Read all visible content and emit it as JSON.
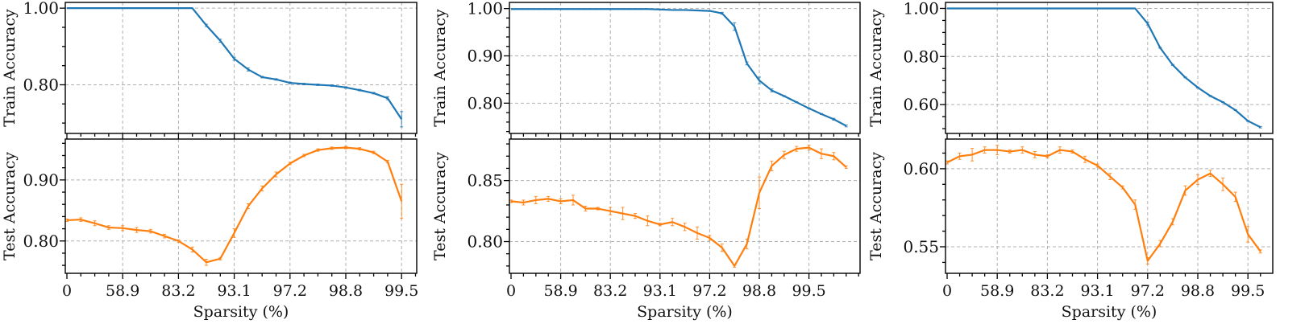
{
  "figure": {
    "train_color": "#1f77b4",
    "test_color": "#ff7f0e",
    "grid_color": "#b0b0b0"
  },
  "chart_data": [
    {
      "type": "line",
      "panel": "left",
      "title": "",
      "xlabel": "Sparsity (%)",
      "x_tick_labels": [
        "0",
        "58.9",
        "83.2",
        "93.1",
        "97.2",
        "98.8",
        "99.5"
      ],
      "x_tick_step_index": 4,
      "n_points": 25,
      "top": {
        "ylabel": "Train Accuracy",
        "ylim": [
          0.673,
          1.015
        ],
        "yticks": [
          1.0,
          0.8
        ],
        "ytick_labels": [
          "1.00",
          "0.80"
        ],
        "minor_step": 0.05,
        "series": [
          {
            "name": "Train Accuracy",
            "color": "#1f77b4",
            "values": [
              1.0,
              1.0,
              1.0,
              1.0,
              1.0,
              1.0,
              1.0,
              1.0,
              1.0,
              1.0,
              0.955,
              0.915,
              0.868,
              0.84,
              0.82,
              0.814,
              0.805,
              0.802,
              0.8,
              0.798,
              0.793,
              0.786,
              0.778,
              0.765,
              0.71
            ],
            "errors": [
              0,
              0,
              0,
              0,
              0,
              0,
              0,
              0,
              0,
              0,
              0.003,
              0.004,
              0.004,
              0.004,
              0.002,
              0.002,
              0.002,
              0.002,
              0.002,
              0.002,
              0.002,
              0.002,
              0.002,
              0.004,
              0.02
            ]
          }
        ]
      },
      "bottom": {
        "ylabel": "Test Accuracy",
        "ylim": [
          0.747,
          0.967
        ],
        "yticks": [
          0.9,
          0.8
        ],
        "ytick_labels": [
          "0.90",
          "0.80"
        ],
        "minor_step": 0.02,
        "series": [
          {
            "name": "Test Accuracy",
            "color": "#ff7f0e",
            "values": [
              0.834,
              0.835,
              0.829,
              0.822,
              0.821,
              0.818,
              0.816,
              0.808,
              0.8,
              0.786,
              0.765,
              0.771,
              0.813,
              0.857,
              0.886,
              0.909,
              0.927,
              0.94,
              0.949,
              0.952,
              0.953,
              0.951,
              0.945,
              0.93,
              0.865
            ],
            "errors": [
              0.002,
              0.003,
              0.004,
              0.003,
              0.004,
              0.004,
              0.003,
              0.003,
              0.002,
              0.004,
              0.005,
              0.002,
              0.007,
              0.004,
              0.004,
              0.004,
              0.002,
              0.002,
              0.002,
              0.002,
              0.002,
              0.002,
              0.002,
              0.002,
              0.028
            ]
          }
        ]
      }
    },
    {
      "type": "line",
      "panel": "middle",
      "title": "",
      "xlabel": "Sparsity (%)",
      "x_tick_labels": [
        "0",
        "58.9",
        "83.2",
        "93.1",
        "97.2",
        "98.8",
        "99.5"
      ],
      "x_tick_step_index": 4,
      "n_points": 28,
      "top": {
        "ylabel": "Train Accuracy",
        "ylim": [
          0.736,
          1.013
        ],
        "yticks": [
          1.0,
          0.9,
          0.8
        ],
        "ytick_labels": [
          "1.00",
          "0.90",
          "0.80"
        ],
        "minor_step": 0.02,
        "series": [
          {
            "name": "Train Accuracy",
            "color": "#1f77b4",
            "values": [
              0.999,
              0.999,
              0.999,
              0.999,
              0.999,
              0.999,
              0.999,
              0.999,
              0.999,
              0.999,
              0.999,
              0.999,
              0.998,
              0.997,
              0.997,
              0.996,
              0.995,
              0.99,
              0.962,
              0.884,
              0.848,
              0.827,
              0.815,
              0.802,
              0.789,
              0.777,
              0.766,
              0.752
            ],
            "errors": [
              0,
              0,
              0,
              0,
              0,
              0,
              0,
              0,
              0,
              0,
              0,
              0,
              0,
              0,
              0,
              0,
              0.001,
              0.002,
              0.008,
              0.003,
              0.007,
              0.003,
              0.001,
              0.001,
              0.001,
              0.001,
              0.002,
              0.002
            ]
          }
        ]
      },
      "bottom": {
        "ylabel": "Test Accuracy",
        "ylim": [
          0.774,
          0.884
        ],
        "yticks": [
          0.85,
          0.8
        ],
        "ytick_labels": [
          "0.85",
          "0.80"
        ],
        "minor_step": 0.01,
        "series": [
          {
            "name": "Test Accuracy",
            "color": "#ff7f0e",
            "values": [
              0.833,
              0.832,
              0.834,
              0.835,
              0.833,
              0.834,
              0.827,
              0.827,
              0.825,
              0.823,
              0.821,
              0.817,
              0.814,
              0.816,
              0.812,
              0.807,
              0.803,
              0.795,
              0.78,
              0.798,
              0.84,
              0.862,
              0.871,
              0.876,
              0.877,
              0.872,
              0.87,
              0.861
            ],
            "errors": [
              0.001,
              0.002,
              0.003,
              0.002,
              0.002,
              0.004,
              0.002,
              0.001,
              0.003,
              0.005,
              0.002,
              0.004,
              0.001,
              0.003,
              0.003,
              0.005,
              0.002,
              0.003,
              0.001,
              0.004,
              0.013,
              0.004,
              0.003,
              0.002,
              0.002,
              0.004,
              0.003,
              0.001
            ]
          }
        ]
      }
    },
    {
      "type": "line",
      "panel": "right",
      "title": "",
      "xlabel": "Sparsity (%)",
      "x_tick_labels": [
        "0",
        "58.9",
        "83.2",
        "93.1",
        "97.2",
        "98.8",
        "99.5"
      ],
      "x_tick_step_index": 4,
      "n_points": 26,
      "top": {
        "ylabel": "Train Accuracy",
        "ylim": [
          0.48,
          1.025
        ],
        "yticks": [
          1.0,
          0.8,
          0.6
        ],
        "ytick_labels": [
          "1.00",
          "0.80",
          "0.60"
        ],
        "minor_step": 0.05,
        "series": [
          {
            "name": "Train Accuracy",
            "color": "#1f77b4",
            "values": [
              1.0,
              1.0,
              1.0,
              1.0,
              1.0,
              1.0,
              1.0,
              1.0,
              1.0,
              1.0,
              1.0,
              1.0,
              1.0,
              1.0,
              1.0,
              1.0,
              0.937,
              0.836,
              0.765,
              0.713,
              0.671,
              0.636,
              0.61,
              0.577,
              0.532,
              0.506
            ],
            "errors": [
              0,
              0,
              0,
              0,
              0,
              0,
              0,
              0,
              0,
              0,
              0,
              0,
              0,
              0,
              0,
              0,
              0.006,
              0.002,
              0.002,
              0.002,
              0.002,
              0.002,
              0.002,
              0.002,
              0.002,
              0.003
            ]
          }
        ]
      },
      "bottom": {
        "ylabel": "Test Accuracy",
        "ylim": [
          0.533,
          0.619
        ],
        "yticks": [
          0.6,
          0.55
        ],
        "ytick_labels": [
          "0.60",
          "0.55"
        ],
        "minor_step": 0.01,
        "series": [
          {
            "name": "Test Accuracy",
            "color": "#ff7f0e",
            "values": [
              0.604,
              0.608,
              0.609,
              0.612,
              0.612,
              0.611,
              0.612,
              0.609,
              0.608,
              0.612,
              0.611,
              0.606,
              0.602,
              0.595,
              0.588,
              0.577,
              0.541,
              0.552,
              0.566,
              0.586,
              0.593,
              0.597,
              0.59,
              0.582,
              0.558,
              0.547
            ],
            "errors": [
              0.001,
              0.002,
              0.004,
              0.002,
              0.003,
              0.001,
              0.002,
              0.002,
              0.001,
              0.002,
              0.001,
              0.002,
              0.001,
              0.002,
              0.001,
              0.003,
              0.002,
              0.002,
              0.002,
              0.003,
              0.003,
              0.002,
              0.004,
              0.003,
              0.005,
              0.001
            ]
          }
        ]
      }
    }
  ]
}
